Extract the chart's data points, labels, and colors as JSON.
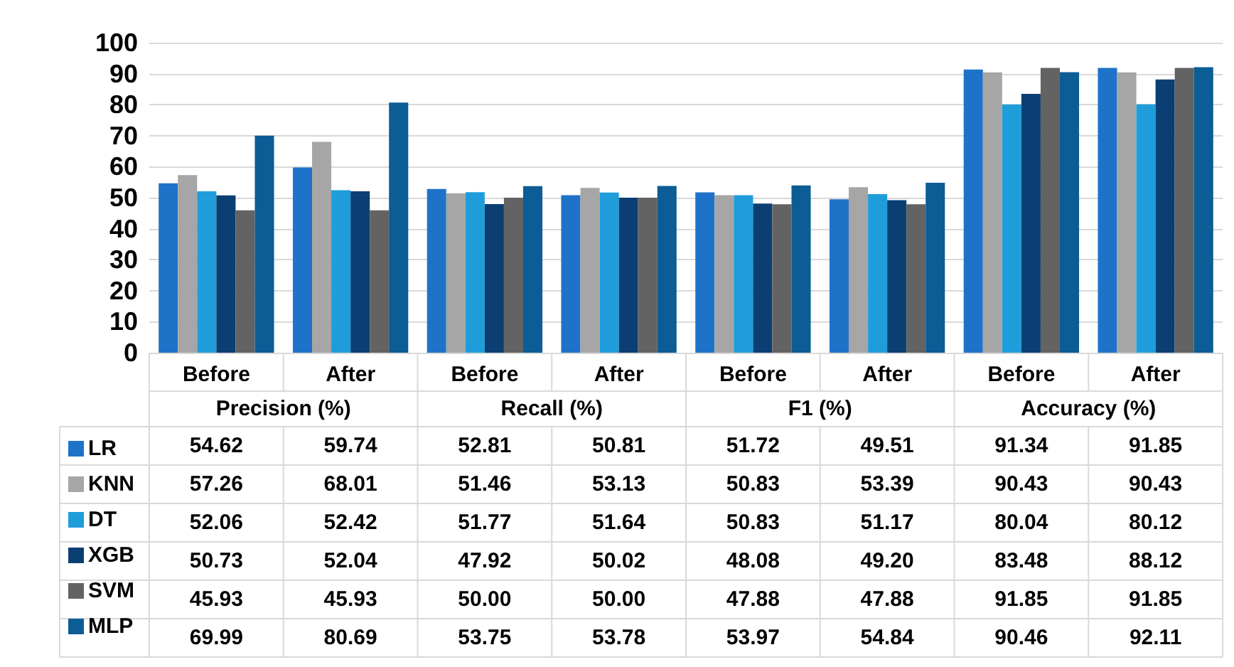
{
  "chart_data": {
    "type": "bar",
    "categories": [
      "Before",
      "After",
      "Before",
      "After",
      "Before",
      "After",
      "Before",
      "After"
    ],
    "annotations": [
      "Precision (%)",
      "Recall (%)",
      "F1 (%)",
      "Accuracy (%)"
    ],
    "ylim": [
      0,
      100
    ],
    "yticks": [
      0,
      10,
      20,
      30,
      40,
      50,
      60,
      70,
      80,
      90,
      100
    ],
    "grid": "y",
    "legend": "bottom",
    "series": [
      {
        "name": "LR",
        "color": "#1e73c8",
        "values": [
          54.62,
          59.74,
          52.81,
          50.81,
          51.72,
          49.51,
          91.34,
          91.85
        ],
        "value_labels": [
          "54.62",
          "59.74",
          "52.81",
          "50.81",
          "51.72",
          "49.51",
          "91.34",
          "91.85"
        ]
      },
      {
        "name": "KNN",
        "color": "#a6a6a6",
        "values": [
          57.26,
          68.01,
          51.46,
          53.13,
          50.83,
          53.39,
          90.43,
          90.43
        ],
        "value_labels": [
          "57.26",
          "68.01",
          "51.46",
          "53.13",
          "50.83",
          "53.39",
          "90.43",
          "90.43"
        ]
      },
      {
        "name": "DT",
        "color": "#1f9ddb",
        "values": [
          52.06,
          52.42,
          51.77,
          51.64,
          50.83,
          51.17,
          80.04,
          80.12
        ],
        "value_labels": [
          "52.06",
          "52.42",
          "51.77",
          "51.64",
          "50.83",
          "51.17",
          "80.04",
          "80.12"
        ]
      },
      {
        "name": "XGB",
        "color": "#0b3f73",
        "values": [
          50.73,
          52.04,
          47.92,
          50.02,
          48.08,
          49.2,
          83.48,
          88.12
        ],
        "value_labels": [
          "50.73",
          "52.04",
          "47.92",
          "50.02",
          "48.08",
          "49.20",
          "83.48",
          "88.12"
        ]
      },
      {
        "name": "SVM",
        "color": "#636363",
        "values": [
          45.93,
          45.93,
          50,
          50,
          47.88,
          47.88,
          91.85,
          91.85
        ],
        "value_labels": [
          "45.93",
          "45.93",
          "50.00",
          "50.00",
          "47.88",
          "47.88",
          "91.85",
          "91.85"
        ]
      },
      {
        "name": "MLP",
        "color": "#0c5c95",
        "values": [
          69.99,
          80.69,
          53.75,
          53.78,
          53.97,
          54.84,
          90.46,
          92.11
        ],
        "value_labels": [
          "69.99",
          "80.69",
          "53.75",
          "53.78",
          "53.97",
          "54.84",
          "90.46",
          "92.11"
        ]
      }
    ]
  }
}
